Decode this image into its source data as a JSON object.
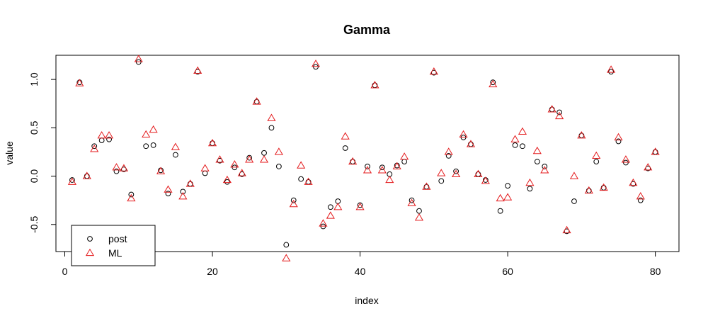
{
  "chart_data": {
    "type": "scatter",
    "title": "Gamma",
    "xlabel": "index",
    "ylabel": "value",
    "xlim": [
      -1.2,
      83.2
    ],
    "ylim": [
      -0.78,
      1.25
    ],
    "xticks": [
      0,
      20,
      40,
      60,
      80
    ],
    "xtick_labels": [
      "0",
      "20",
      "40",
      "60",
      "80"
    ],
    "yticks": [
      -0.5,
      0.0,
      0.5,
      1.0
    ],
    "ytick_labels": [
      "-0.5",
      "0.0",
      "0.5",
      "1.0"
    ],
    "grid": false,
    "legend": "bottom-left",
    "x": [
      1,
      2,
      3,
      4,
      5,
      6,
      7,
      8,
      9,
      10,
      11,
      12,
      13,
      14,
      15,
      16,
      17,
      18,
      19,
      20,
      21,
      22,
      23,
      24,
      25,
      26,
      27,
      28,
      29,
      30,
      31,
      32,
      33,
      34,
      35,
      36,
      37,
      38,
      39,
      40,
      41,
      42,
      43,
      44,
      45,
      46,
      47,
      48,
      49,
      50,
      51,
      52,
      53,
      54,
      55,
      56,
      57,
      58,
      59,
      60,
      61,
      62,
      63,
      64,
      65,
      66,
      67,
      68,
      69,
      70,
      71,
      72,
      73,
      74,
      75,
      76,
      77,
      78,
      79,
      80
    ],
    "series": [
      {
        "name": "post",
        "marker": "circle",
        "color": "#000000",
        "values": [
          -0.04,
          0.97,
          0.0,
          0.31,
          0.37,
          0.38,
          0.05,
          0.07,
          -0.19,
          1.18,
          0.31,
          0.32,
          0.06,
          -0.18,
          0.22,
          -0.16,
          -0.08,
          1.08,
          0.03,
          0.34,
          0.16,
          -0.06,
          0.09,
          0.02,
          0.19,
          0.77,
          0.24,
          0.5,
          0.1,
          -0.71,
          -0.25,
          -0.03,
          -0.06,
          1.13,
          -0.52,
          -0.32,
          -0.26,
          0.29,
          0.15,
          -0.3,
          0.1,
          0.94,
          0.09,
          0.02,
          0.11,
          0.15,
          -0.25,
          -0.36,
          -0.11,
          1.07,
          -0.05,
          0.21,
          0.05,
          0.4,
          0.33,
          0.02,
          -0.04,
          0.97,
          -0.36,
          -0.1,
          0.32,
          0.31,
          -0.13,
          0.15,
          0.1,
          0.69,
          0.66,
          -0.57,
          -0.26,
          0.42,
          -0.15,
          0.15,
          -0.12,
          1.08,
          0.36,
          0.14,
          -0.08,
          -0.25,
          0.08,
          0.25
        ]
      },
      {
        "name": "ML",
        "marker": "triangle",
        "color": "#e41a1c",
        "values": [
          -0.06,
          0.96,
          0.0,
          0.28,
          0.42,
          0.42,
          0.09,
          0.08,
          -0.23,
          1.21,
          0.43,
          0.48,
          0.05,
          -0.14,
          0.3,
          -0.21,
          -0.08,
          1.09,
          0.08,
          0.34,
          0.17,
          -0.04,
          0.12,
          0.03,
          0.17,
          0.77,
          0.17,
          0.6,
          0.25,
          -0.85,
          -0.29,
          0.11,
          -0.06,
          1.16,
          -0.49,
          -0.41,
          -0.32,
          0.41,
          0.15,
          -0.32,
          0.06,
          0.94,
          0.06,
          -0.04,
          0.1,
          0.2,
          -0.28,
          -0.43,
          -0.11,
          1.08,
          0.03,
          0.25,
          0.02,
          0.43,
          0.33,
          0.02,
          -0.05,
          0.95,
          -0.23,
          -0.22,
          0.38,
          0.46,
          -0.07,
          0.26,
          0.06,
          0.69,
          0.62,
          -0.56,
          0.0,
          0.42,
          -0.15,
          0.21,
          -0.12,
          1.1,
          0.4,
          0.17,
          -0.07,
          -0.21,
          0.09,
          0.25
        ]
      }
    ]
  }
}
